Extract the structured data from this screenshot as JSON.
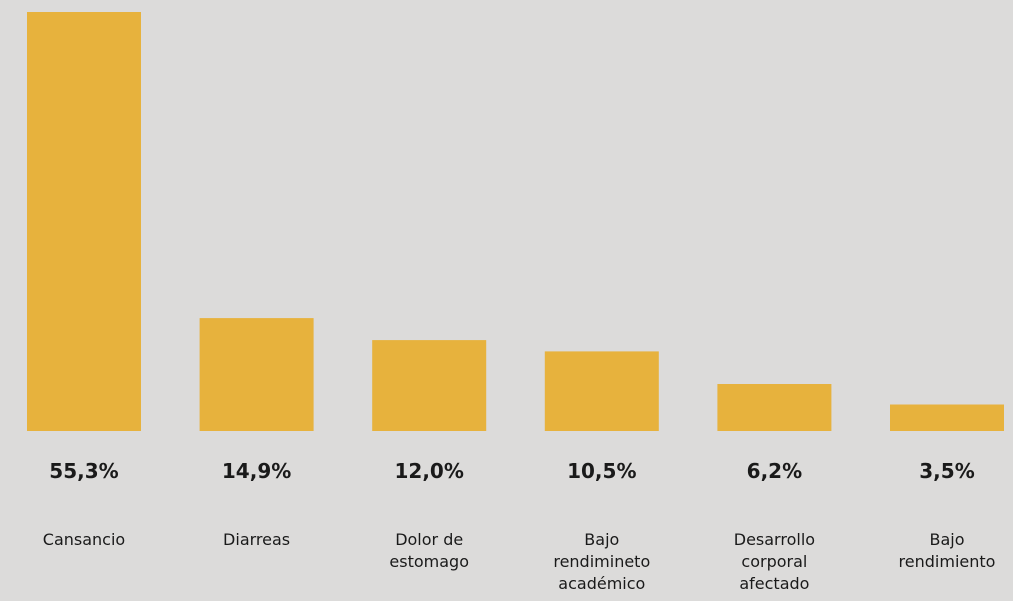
{
  "chart_data": {
    "type": "bar",
    "categories": [
      "Cansancio",
      "Diarreas",
      "Dolor de estomago",
      "Bajo rendimineto académico",
      "Desarrollo corporal afectado",
      "Bajo rendimiento"
    ],
    "category_lines": [
      [
        "Cansancio"
      ],
      [
        "Diarreas"
      ],
      [
        "Dolor de",
        "estomago"
      ],
      [
        "Bajo",
        "rendimineto",
        "académico"
      ],
      [
        "Desarrollo",
        "corporal",
        "afectado"
      ],
      [
        "Bajo",
        "rendimiento"
      ]
    ],
    "values": [
      55.3,
      14.9,
      12.0,
      10.5,
      6.2,
      3.5
    ],
    "value_labels": [
      "55,3%",
      "14,9%",
      "12,0%",
      "10,5%",
      "6,2%",
      "3,5%"
    ],
    "ylim": [
      0,
      55.3
    ],
    "grid": false,
    "colors": {
      "bar": "#e7b23d",
      "background": "#dcdbda",
      "text": "#1a1a1a"
    }
  }
}
